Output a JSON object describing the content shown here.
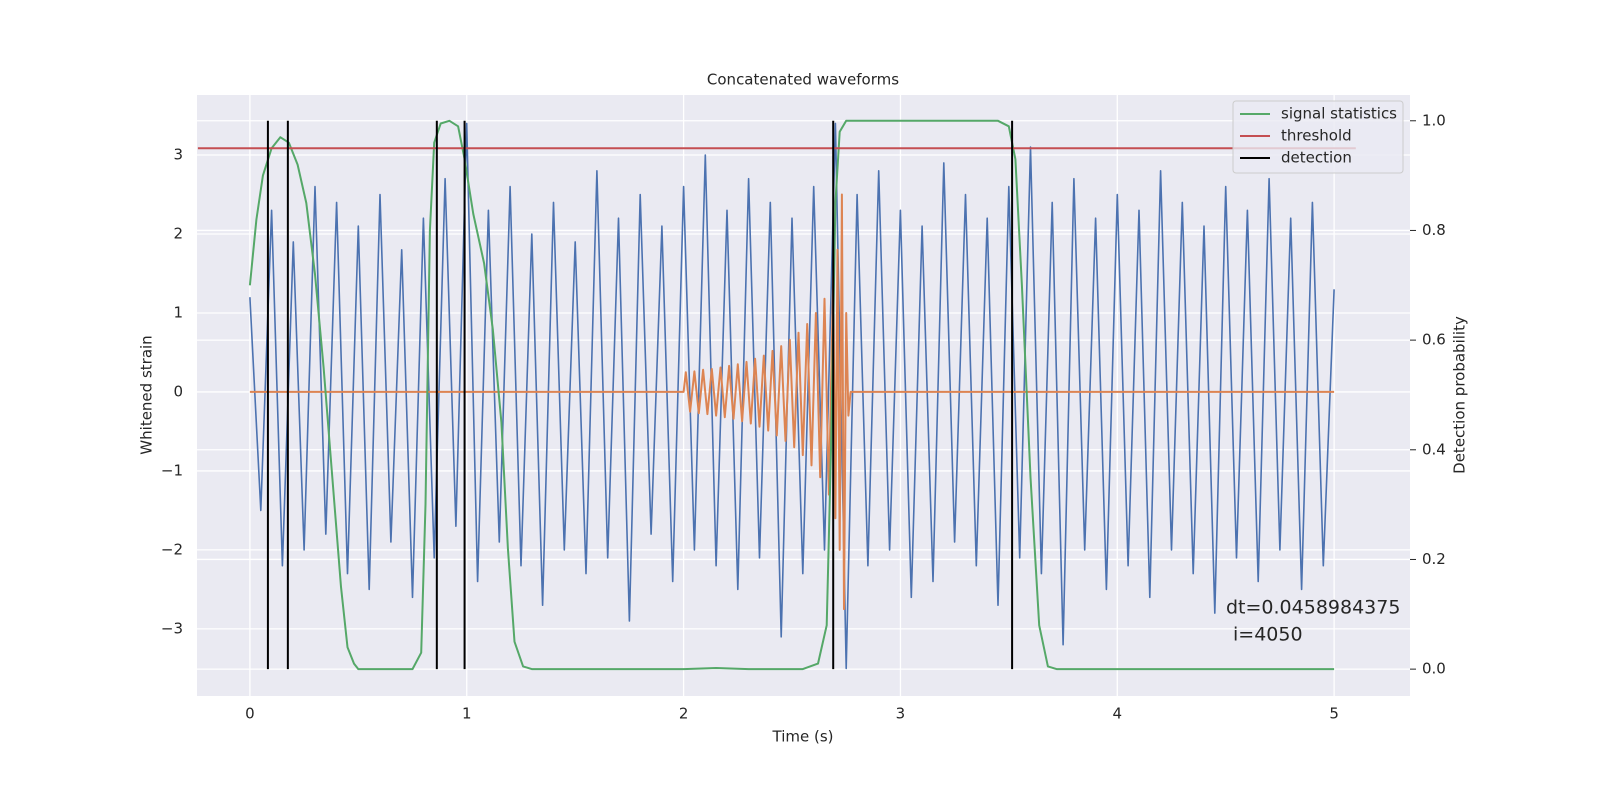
{
  "chart_data": {
    "type": "line",
    "title": "Concatenated waveforms",
    "xlabel": "Time (s)",
    "ylabel": "Whitened strain",
    "y2label": "Detection probability",
    "xlim": [
      -0.244,
      5.35
    ],
    "ylim": [
      -3.85,
      3.76
    ],
    "y2lim": [
      -0.049,
      1.047
    ],
    "xticks": [
      0,
      1,
      2,
      3,
      4,
      5
    ],
    "yticks": [
      {
        "value": -3,
        "label": "−3"
      },
      {
        "value": -2,
        "label": "−2"
      },
      {
        "value": -1,
        "label": "−1"
      },
      0,
      1,
      2,
      3
    ],
    "y2ticks": [
      {
        "value": 0,
        "label": "0.0"
      },
      {
        "value": 0.2,
        "label": "0.2"
      },
      {
        "value": 0.4,
        "label": "0.4"
      },
      {
        "value": 0.6,
        "label": "0.6"
      },
      {
        "value": 0.8,
        "label": "0.8"
      },
      {
        "value": 1,
        "label": "1.0"
      }
    ],
    "grid": true,
    "legend": "upper right",
    "annotation": [
      "dt=0.0458984375",
      "i=4050"
    ],
    "series": [
      {
        "color": "#4c72b0",
        "x": [
          0,
          0.05,
          0.1,
          0.15,
          0.2,
          0.25,
          0.3,
          0.35,
          0.4,
          0.45,
          0.5,
          0.55,
          0.6,
          0.65,
          0.7,
          0.75,
          0.8,
          0.85,
          0.9,
          0.95,
          1,
          1.05,
          1.1,
          1.15,
          1.2,
          1.25,
          1.3,
          1.35,
          1.4,
          1.45,
          1.5,
          1.55,
          1.6,
          1.65,
          1.7,
          1.75,
          1.8,
          1.85,
          1.9,
          1.95,
          2,
          2.05,
          2.1,
          2.15,
          2.2,
          2.25,
          2.3,
          2.35,
          2.4,
          2.45,
          2.5,
          2.55,
          2.6,
          2.65,
          2.7,
          2.75,
          2.8,
          2.85,
          2.9,
          2.95,
          3,
          3.05,
          3.1,
          3.15,
          3.2,
          3.25,
          3.3,
          3.35,
          3.4,
          3.45,
          3.5,
          3.55,
          3.6,
          3.65,
          3.7,
          3.75,
          3.8,
          3.85,
          3.9,
          3.95,
          4,
          4.05,
          4.1,
          4.15,
          4.2,
          4.25,
          4.3,
          4.35,
          4.4,
          4.45,
          4.5,
          4.55,
          4.6,
          4.65,
          4.7,
          4.75,
          4.8,
          4.85,
          4.9,
          4.95,
          5
        ],
        "values": [
          1.2,
          -1.5,
          2.3,
          -2.2,
          1.9,
          -2.0,
          2.6,
          -1.8,
          2.4,
          -2.3,
          2.1,
          -2.5,
          2.5,
          -1.9,
          1.8,
          -2.6,
          2.2,
          -2.1,
          2.7,
          -1.7,
          3.4,
          -2.4,
          2.3,
          -1.9,
          2.6,
          -2.2,
          2.0,
          -2.7,
          2.4,
          -2.0,
          1.9,
          -2.3,
          2.8,
          -2.1,
          2.2,
          -2.9,
          2.5,
          -1.8,
          2.1,
          -2.4,
          2.6,
          -2.0,
          3.0,
          -2.2,
          2.3,
          -2.5,
          2.7,
          -2.1,
          2.4,
          -3.1,
          2.2,
          -2.3,
          2.6,
          -2.0,
          3.4,
          -3.5,
          2.5,
          -2.2,
          2.8,
          -2.0,
          2.3,
          -2.6,
          2.1,
          -2.4,
          2.9,
          -1.9,
          2.5,
          -2.2,
          2.2,
          -2.7,
          2.6,
          -2.1,
          3.1,
          -2.3,
          2.4,
          -3.2,
          2.7,
          -2.0,
          2.2,
          -2.5,
          2.5,
          -2.2,
          2.3,
          -2.6,
          2.8,
          -2.0,
          2.4,
          -2.3,
          2.1,
          -2.8,
          2.6,
          -2.1,
          2.3,
          -2.4,
          2.7,
          -2.0,
          2.2,
          -2.5,
          2.4,
          -2.2,
          1.3
        ]
      },
      {
        "color": "#dd8452",
        "x": [
          0,
          2.0,
          2.01,
          2.03,
          2.05,
          2.07,
          2.09,
          2.11,
          2.13,
          2.15,
          2.17,
          2.19,
          2.21,
          2.23,
          2.25,
          2.27,
          2.29,
          2.31,
          2.33,
          2.35,
          2.37,
          2.39,
          2.41,
          2.43,
          2.45,
          2.47,
          2.49,
          2.51,
          2.53,
          2.55,
          2.57,
          2.59,
          2.61,
          2.63,
          2.65,
          2.67,
          2.69,
          2.7,
          2.71,
          2.72,
          2.73,
          2.74,
          2.75,
          2.76,
          2.77,
          5.0
        ],
        "values": [
          0,
          0,
          0.25,
          -0.25,
          0.26,
          -0.27,
          0.28,
          -0.28,
          0.29,
          -0.3,
          0.31,
          -0.32,
          0.33,
          -0.34,
          0.35,
          -0.37,
          0.38,
          -0.4,
          0.42,
          -0.44,
          0.46,
          -0.49,
          0.52,
          -0.55,
          0.58,
          -0.62,
          0.66,
          -0.7,
          0.75,
          -0.8,
          0.86,
          -0.93,
          1.0,
          -1.08,
          1.18,
          -1.3,
          1.45,
          -1.6,
          1.8,
          -2.0,
          2.5,
          -2.75,
          1.0,
          -0.3,
          0,
          0
        ]
      },
      {
        "name": "signal statistics",
        "color": "#55a868",
        "axis": "y2",
        "x": [
          0,
          0.03,
          0.06,
          0.1,
          0.14,
          0.18,
          0.22,
          0.26,
          0.3,
          0.34,
          0.38,
          0.42,
          0.45,
          0.48,
          0.5,
          0.75,
          0.79,
          0.81,
          0.83,
          0.85,
          0.88,
          0.92,
          0.96,
          0.99,
          1.03,
          1.08,
          1.12,
          1.16,
          1.19,
          1.22,
          1.26,
          1.3,
          2.0,
          2.15,
          2.3,
          2.55,
          2.62,
          2.66,
          2.68,
          2.7,
          2.72,
          2.75,
          3.45,
          3.5,
          3.53,
          3.56,
          3.6,
          3.64,
          3.68,
          3.72,
          5.0
        ],
        "values": [
          0.7,
          0.82,
          0.9,
          0.95,
          0.97,
          0.96,
          0.92,
          0.85,
          0.72,
          0.55,
          0.35,
          0.15,
          0.04,
          0.01,
          0,
          0,
          0.03,
          0.3,
          0.8,
          0.96,
          0.995,
          1,
          0.99,
          0.93,
          0.83,
          0.74,
          0.62,
          0.45,
          0.22,
          0.05,
          0.005,
          0,
          0,
          0.002,
          0,
          0,
          0.01,
          0.08,
          0.4,
          0.85,
          0.98,
          1,
          1,
          0.99,
          0.93,
          0.7,
          0.35,
          0.08,
          0.005,
          0,
          0
        ]
      },
      {
        "name": "threshold",
        "color": "#c44e52",
        "axis": "y2",
        "x": [
          -0.24,
          5.1
        ],
        "values": [
          0.95,
          0.95
        ]
      },
      {
        "name": "detection",
        "color": "#000000",
        "axis": "y2",
        "x": [
          0.083,
          0.175,
          0.862,
          0.99,
          2.69,
          3.515
        ]
      }
    ]
  }
}
